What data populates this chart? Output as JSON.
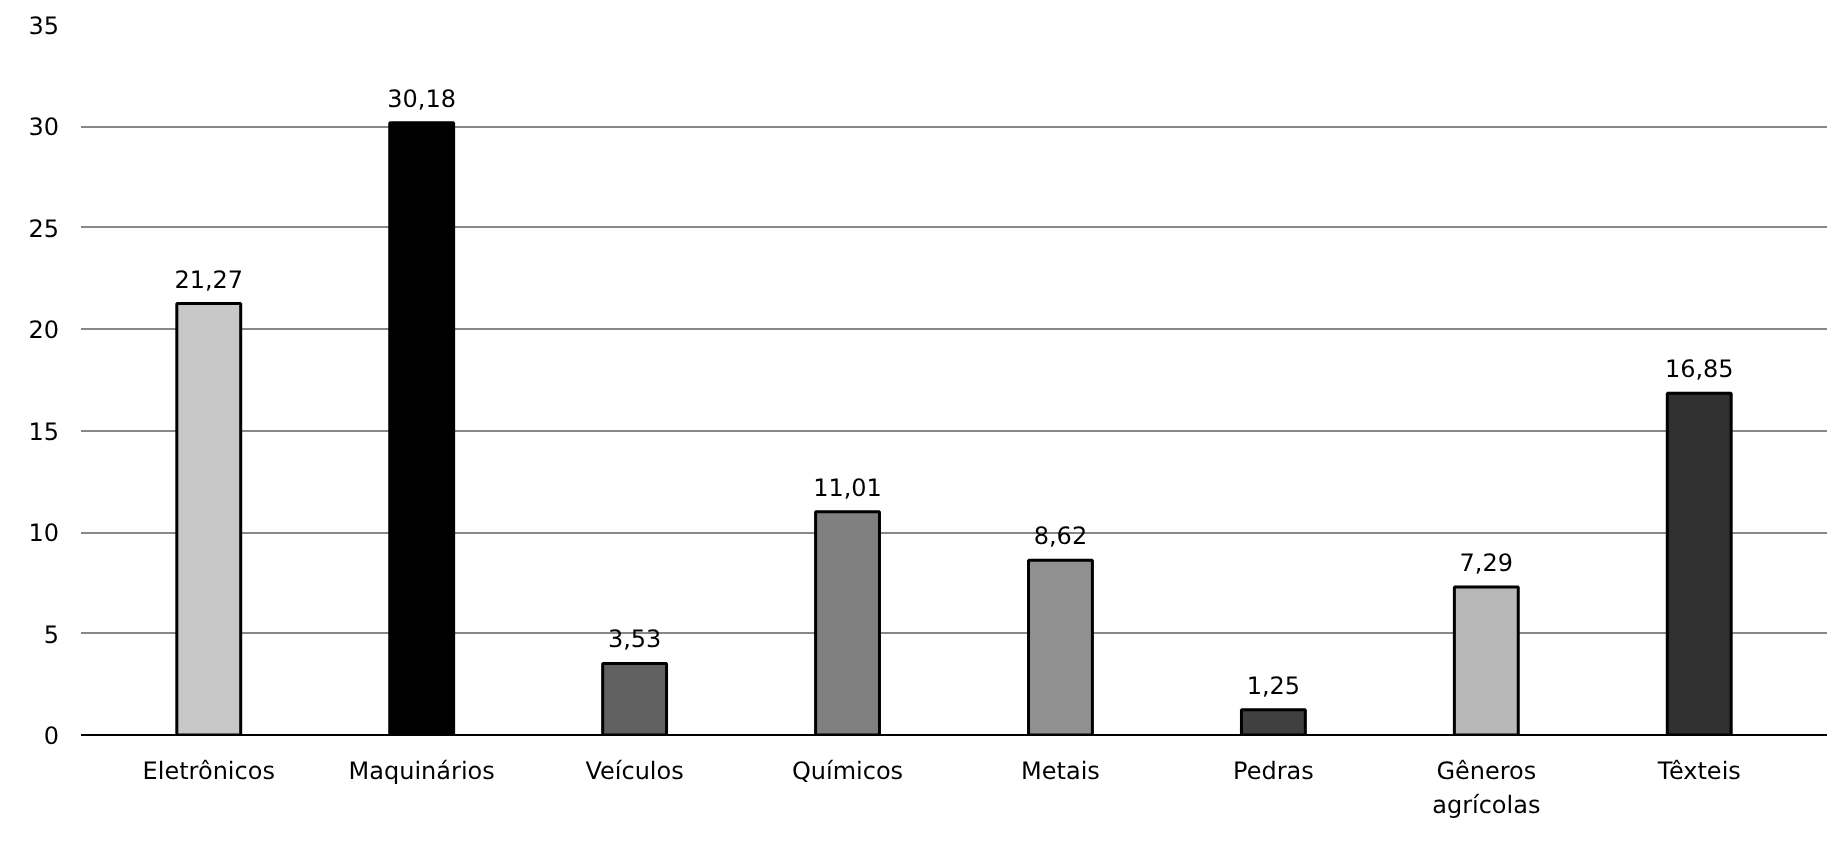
{
  "chart_data": {
    "type": "bar",
    "categories": [
      "Eletrônicos",
      "Maquinários",
      "Veículos",
      "Químicos",
      "Metais",
      "Pedras",
      "Gêneros agrícolas",
      "Têxteis"
    ],
    "values": [
      21.27,
      30.18,
      3.53,
      11.01,
      8.62,
      1.25,
      7.29,
      16.85
    ],
    "value_labels": [
      "21,27",
      "30,18",
      "3,53",
      "11,01",
      "8,62",
      "1,25",
      "7,29",
      "16,85"
    ],
    "colors": [
      "#c8c8c8",
      "#000000",
      "#606060",
      "#808080",
      "#909090",
      "#404040",
      "#b8b8b8",
      "#303030"
    ],
    "ylim": [
      0,
      35
    ],
    "yticks": [
      0,
      5,
      10,
      15,
      20,
      25,
      30,
      35
    ],
    "grid": "y"
  }
}
